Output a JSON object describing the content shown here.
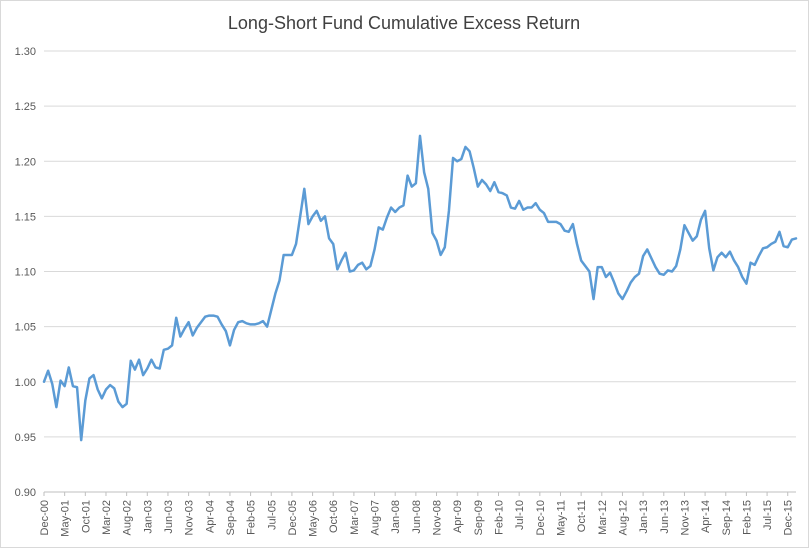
{
  "chart_data": {
    "type": "line",
    "title": "Long-Short Fund Cumulative Excess Return",
    "xlabel": "",
    "ylabel": "",
    "ylim": [
      0.9,
      1.3
    ],
    "y_ticks": [
      "0.90",
      "0.95",
      "1.00",
      "1.05",
      "1.10",
      "1.15",
      "1.20",
      "1.25",
      "1.30"
    ],
    "y_tick_values": [
      0.9,
      0.95,
      1.0,
      1.05,
      1.1,
      1.15,
      1.2,
      1.25,
      1.3
    ],
    "grid": "horizontal",
    "legend": "none",
    "line_color": "#5b9bd5",
    "x_tick_labels": [
      "Dec-00",
      "May-01",
      "Oct-01",
      "Mar-02",
      "Aug-02",
      "Jan-03",
      "Jun-03",
      "Nov-03",
      "Apr-04",
      "Sep-04",
      "Feb-05",
      "Jul-05",
      "Dec-05",
      "May-06",
      "Oct-06",
      "Mar-07",
      "Aug-07",
      "Jan-08",
      "Jun-08",
      "Nov-08",
      "Apr-09",
      "Sep-09",
      "Feb-10",
      "Jul-10",
      "Dec-10",
      "May-11",
      "Oct-11",
      "Mar-12",
      "Aug-12",
      "Jan-13",
      "Jun-13",
      "Nov-13",
      "Apr-14",
      "Sep-14",
      "Feb-15",
      "Jul-15",
      "Dec-15"
    ],
    "x_start": "Dec-00",
    "x_end": "Dec-15",
    "series": [
      {
        "values": [
          1.0,
          1.01,
          0.998,
          0.977,
          1.001,
          0.996,
          1.013,
          0.996,
          0.995,
          0.947,
          0.983,
          1.003,
          1.006,
          0.993,
          0.985,
          0.993,
          0.997,
          0.994,
          0.982,
          0.977,
          0.98,
          1.019,
          1.011,
          1.02,
          1.006,
          1.012,
          1.02,
          1.013,
          1.012,
          1.029,
          1.03,
          1.033,
          1.058,
          1.041,
          1.048,
          1.054,
          1.042,
          1.049,
          1.054,
          1.059,
          1.06,
          1.06,
          1.059,
          1.052,
          1.046,
          1.033,
          1.047,
          1.054,
          1.055,
          1.053,
          1.052,
          1.052,
          1.053,
          1.055,
          1.05,
          1.065,
          1.08,
          1.092,
          1.115,
          1.115,
          1.115,
          1.125,
          1.15,
          1.175,
          1.143,
          1.15,
          1.155,
          1.146,
          1.15,
          1.13,
          1.125,
          1.102,
          1.11,
          1.117,
          1.1,
          1.101,
          1.106,
          1.108,
          1.102,
          1.105,
          1.12,
          1.14,
          1.138,
          1.149,
          1.158,
          1.154,
          1.158,
          1.16,
          1.187,
          1.177,
          1.18,
          1.223,
          1.19,
          1.175,
          1.135,
          1.128,
          1.115,
          1.122,
          1.155,
          1.203,
          1.2,
          1.202,
          1.213,
          1.209,
          1.194,
          1.177,
          1.183,
          1.179,
          1.173,
          1.181,
          1.172,
          1.171,
          1.169,
          1.158,
          1.157,
          1.164,
          1.156,
          1.158,
          1.158,
          1.162,
          1.156,
          1.153,
          1.145,
          1.145,
          1.145,
          1.143,
          1.137,
          1.136,
          1.143,
          1.125,
          1.11,
          1.105,
          1.1,
          1.075,
          1.104,
          1.104,
          1.095,
          1.099,
          1.09,
          1.08,
          1.075,
          1.082,
          1.09,
          1.095,
          1.098,
          1.114,
          1.12,
          1.112,
          1.104,
          1.098,
          1.097,
          1.101,
          1.1,
          1.105,
          1.12,
          1.142,
          1.135,
          1.128,
          1.132,
          1.147,
          1.155,
          1.121,
          1.101,
          1.113,
          1.117,
          1.113,
          1.118,
          1.11,
          1.104,
          1.095,
          1.089,
          1.108,
          1.106,
          1.114,
          1.121,
          1.122,
          1.125,
          1.127,
          1.136,
          1.123,
          1.122,
          1.129,
          1.13
        ]
      }
    ]
  }
}
